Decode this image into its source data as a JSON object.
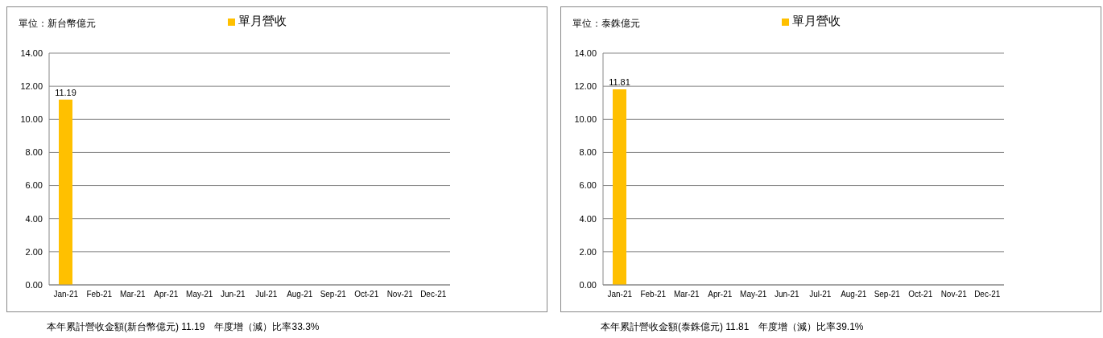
{
  "chart_data": [
    {
      "type": "bar",
      "ylabel": "單位：新台幣億元",
      "categories": [
        "Jan-21",
        "Feb-21",
        "Mar-21",
        "Apr-21",
        "May-21",
        "Jun-21",
        "Jul-21",
        "Aug-21",
        "Sep-21",
        "Oct-21",
        "Nov-21",
        "Dec-21"
      ],
      "series": [
        {
          "name": "單月營收",
          "color": "#ffc000",
          "values": [
            11.19,
            null,
            null,
            null,
            null,
            null,
            null,
            null,
            null,
            null,
            null,
            null
          ]
        }
      ],
      "ylim": [
        0,
        14
      ],
      "yticks": [
        {
          "value": 0,
          "label": "0.00"
        },
        {
          "value": 2,
          "label": "2.00"
        },
        {
          "value": 4,
          "label": "4.00"
        },
        {
          "value": 6,
          "label": "6.00"
        },
        {
          "value": 8,
          "label": "8.00"
        },
        {
          "value": 10,
          "label": "10.00"
        },
        {
          "value": 12,
          "label": "12.00"
        },
        {
          "value": 14,
          "label": "14.00"
        }
      ],
      "grid": "y",
      "legend": "top",
      "data_labels": true,
      "annotations": [
        "本年累計營收金額(新台幣億元) 11.19　年度增（減）比率33.3%"
      ]
    },
    {
      "type": "bar",
      "ylabel": "單位：泰銖億元",
      "categories": [
        "Jan-21",
        "Feb-21",
        "Mar-21",
        "Apr-21",
        "May-21",
        "Jun-21",
        "Jul-21",
        "Aug-21",
        "Sep-21",
        "Oct-21",
        "Nov-21",
        "Dec-21"
      ],
      "series": [
        {
          "name": "單月營收",
          "color": "#ffc000",
          "values": [
            11.81,
            null,
            null,
            null,
            null,
            null,
            null,
            null,
            null,
            null,
            null,
            null
          ]
        }
      ],
      "ylim": [
        0,
        14
      ],
      "yticks": [
        {
          "value": 0,
          "label": "0.00"
        },
        {
          "value": 2,
          "label": "2.00"
        },
        {
          "value": 4,
          "label": "4.00"
        },
        {
          "value": 6,
          "label": "6.00"
        },
        {
          "value": 8,
          "label": "8.00"
        },
        {
          "value": 10,
          "label": "10.00"
        },
        {
          "value": 12,
          "label": "12.00"
        },
        {
          "value": 14,
          "label": "14.00"
        }
      ],
      "grid": "y",
      "legend": "top",
      "data_labels": true,
      "annotations": [
        "本年累計營收金額(泰銖億元) 11.81　年度增（減）比率39.1%"
      ]
    }
  ]
}
